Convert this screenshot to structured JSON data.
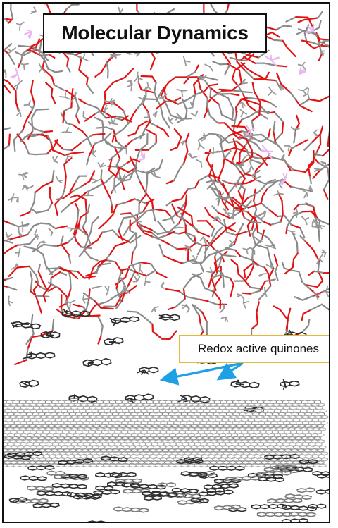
{
  "title": "Molecular Dynamics",
  "callout": "Redox active quinones",
  "colors": {
    "oxygen": "#e01414",
    "carbon": "#8a8a8a",
    "hydrogen_tint": "#e8b7f0",
    "quinone": "#2b2b2b",
    "graphene": "#a8a8a8",
    "arrow": "#1ea0e6",
    "callout_border": "#e2b93b"
  }
}
